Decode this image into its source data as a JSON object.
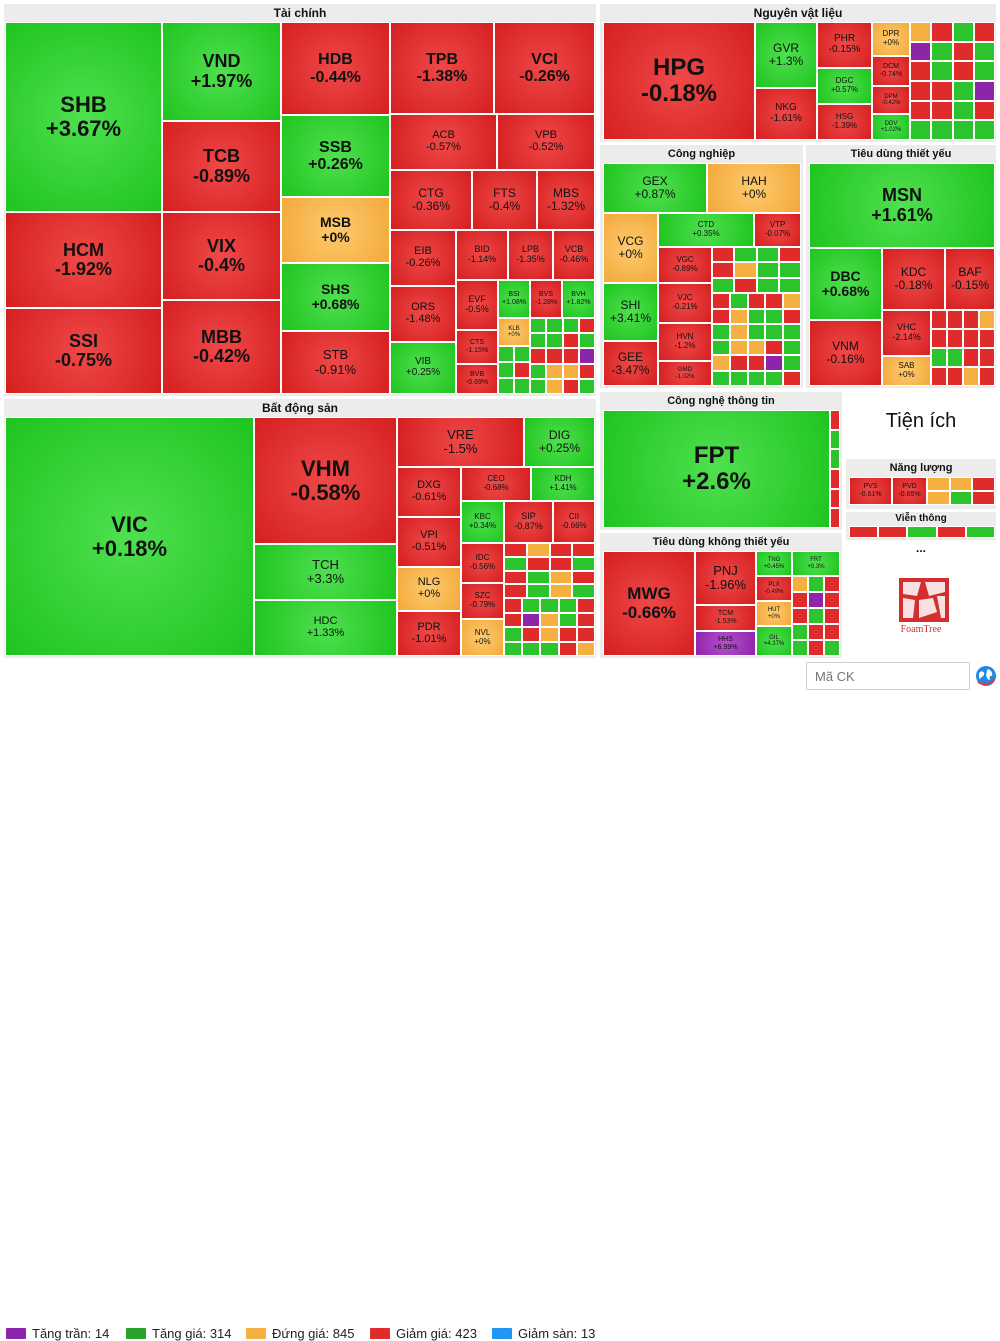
{
  "colors": {
    "ceiling": "#8e24aa",
    "up": "#29a329",
    "flat": "#f5b041",
    "down": "#e02b2b",
    "floor": "#2196f3"
  },
  "legend": [
    {
      "label": "Tăng trần: 14",
      "color": "#8e24aa"
    },
    {
      "label": "Tăng giá: 314",
      "color": "#29a329"
    },
    {
      "label": "Đứng giá: 845",
      "color": "#f5b041"
    },
    {
      "label": "Giảm giá: 423",
      "color": "#e02b2b"
    },
    {
      "label": "Giảm sàn: 13",
      "color": "#2196f3"
    }
  ],
  "search": {
    "placeholder": "Mã CK"
  },
  "util_panel": {
    "title": "Tiện ích",
    "logo_text": "FoamTree",
    "logo_icon": "foamtree-logo-icon",
    "more": "..."
  },
  "chart_data": {
    "type": "treemap",
    "groups": [
      {
        "name": "Tài chính",
        "items": [
          {
            "ticker": "SHB",
            "change": "+3.67%"
          },
          {
            "ticker": "HCM",
            "change": "-1.92%"
          },
          {
            "ticker": "SSI",
            "change": "-0.75%"
          },
          {
            "ticker": "VND",
            "change": "+1.97%"
          },
          {
            "ticker": "TCB",
            "change": "-0.89%"
          },
          {
            "ticker": "VIX",
            "change": "-0.4%"
          },
          {
            "ticker": "MBB",
            "change": "-0.42%"
          },
          {
            "ticker": "HDB",
            "change": "-0.44%"
          },
          {
            "ticker": "SSB",
            "change": "+0.26%"
          },
          {
            "ticker": "MSB",
            "change": "+0%"
          },
          {
            "ticker": "SHS",
            "change": "+0.68%"
          },
          {
            "ticker": "STB",
            "change": "-0.91%"
          },
          {
            "ticker": "TPB",
            "change": "-1.38%"
          },
          {
            "ticker": "VCI",
            "change": "-0.26%"
          },
          {
            "ticker": "ACB",
            "change": "-0.57%"
          },
          {
            "ticker": "VPB",
            "change": "-0.52%"
          },
          {
            "ticker": "CTG",
            "change": "-0.36%"
          },
          {
            "ticker": "FTS",
            "change": "-0.4%"
          },
          {
            "ticker": "MBS",
            "change": "-1.32%"
          },
          {
            "ticker": "EIB",
            "change": "-0.26%"
          },
          {
            "ticker": "BID",
            "change": "-1.14%"
          },
          {
            "ticker": "LPB",
            "change": "-1.35%"
          },
          {
            "ticker": "VCB",
            "change": "-0.46%"
          },
          {
            "ticker": "ORS",
            "change": "-1.48%"
          },
          {
            "ticker": "EVF",
            "change": "-0.5%"
          },
          {
            "ticker": "BSI",
            "change": "+1.08%"
          },
          {
            "ticker": "BVS",
            "change": "-1.28%"
          },
          {
            "ticker": "BVH",
            "change": "+1.82%"
          },
          {
            "ticker": "VIB",
            "change": "+0.25%"
          },
          {
            "ticker": "CTS",
            "change": "-1.15%"
          },
          {
            "ticker": "KLB",
            "change": "+0%"
          },
          {
            "ticker": "BVB",
            "change": "-0.69%"
          }
        ]
      },
      {
        "name": "Bất động sản",
        "items": [
          {
            "ticker": "VIC",
            "change": "+0.18%"
          },
          {
            "ticker": "VHM",
            "change": "-0.58%"
          },
          {
            "ticker": "TCH",
            "change": "+3.3%"
          },
          {
            "ticker": "HDC",
            "change": "+1.33%"
          },
          {
            "ticker": "VRE",
            "change": "-1.5%"
          },
          {
            "ticker": "DIG",
            "change": "+0.25%"
          },
          {
            "ticker": "DXG",
            "change": "-0.61%"
          },
          {
            "ticker": "CEO",
            "change": "-0.68%"
          },
          {
            "ticker": "KDH",
            "change": "+1.41%"
          },
          {
            "ticker": "KBC",
            "change": "+0.34%"
          },
          {
            "ticker": "SIP",
            "change": "-0.87%"
          },
          {
            "ticker": "CII",
            "change": "-0.66%"
          },
          {
            "ticker": "VPI",
            "change": "-0.51%"
          },
          {
            "ticker": "IDC",
            "change": "-0.56%"
          },
          {
            "ticker": "NLG",
            "change": "+0%"
          },
          {
            "ticker": "SZC",
            "change": "-0.79%"
          },
          {
            "ticker": "PDR",
            "change": "-1.01%"
          },
          {
            "ticker": "NVL",
            "change": "+0%"
          }
        ]
      },
      {
        "name": "Nguyên vật liệu",
        "items": [
          {
            "ticker": "HPG",
            "change": "-0.18%"
          },
          {
            "ticker": "GVR",
            "change": "+1.3%"
          },
          {
            "ticker": "NKG",
            "change": "-1.61%"
          },
          {
            "ticker": "PHR",
            "change": "-0.15%"
          },
          {
            "ticker": "DGC",
            "change": "+0.57%"
          },
          {
            "ticker": "HSG",
            "change": "-1.39%"
          },
          {
            "ticker": "DPR",
            "change": "+0%"
          },
          {
            "ticker": "DCM",
            "change": "-0.74%"
          },
          {
            "ticker": "DPM",
            "change": "-0.42%"
          },
          {
            "ticker": "DDV",
            "change": "+1.02%"
          }
        ]
      },
      {
        "name": "Công nghiệp",
        "items": [
          {
            "ticker": "GEX",
            "change": "+0.87%"
          },
          {
            "ticker": "HAH",
            "change": "+0%"
          },
          {
            "ticker": "VCG",
            "change": "+0%"
          },
          {
            "ticker": "CTD",
            "change": "+0.35%"
          },
          {
            "ticker": "VTP",
            "change": "-0.07%"
          },
          {
            "ticker": "SHI",
            "change": "+3.41%"
          },
          {
            "ticker": "VGC",
            "change": "-0.89%"
          },
          {
            "ticker": "VJC",
            "change": "-0.21%"
          },
          {
            "ticker": "HVN",
            "change": "-1.2%"
          },
          {
            "ticker": "GEE",
            "change": "-3.47%"
          },
          {
            "ticker": "GMD",
            "change": "-1.02%"
          }
        ]
      },
      {
        "name": "Tiêu dùng thiết yếu",
        "items": [
          {
            "ticker": "MSN",
            "change": "+1.61%"
          },
          {
            "ticker": "DBC",
            "change": "+0.68%"
          },
          {
            "ticker": "KDC",
            "change": "-0.18%"
          },
          {
            "ticker": "BAF",
            "change": "-0.15%"
          },
          {
            "ticker": "VNM",
            "change": "-0.16%"
          },
          {
            "ticker": "VHC",
            "change": "-2.14%"
          },
          {
            "ticker": "SAB",
            "change": "+0%"
          }
        ]
      },
      {
        "name": "Công nghệ thông tin",
        "items": [
          {
            "ticker": "FPT",
            "change": "+2.6%"
          }
        ]
      },
      {
        "name": "Tiêu dùng không thiết yếu",
        "items": [
          {
            "ticker": "MWG",
            "change": "-0.66%"
          },
          {
            "ticker": "PNJ",
            "change": "-1.96%"
          },
          {
            "ticker": "TNG",
            "change": "+0.45%"
          },
          {
            "ticker": "FRT",
            "change": "+0.3%"
          },
          {
            "ticker": "PLX",
            "change": "-0.49%"
          },
          {
            "ticker": "HUT",
            "change": "+0%"
          },
          {
            "ticker": "TCM",
            "change": "-1.53%"
          },
          {
            "ticker": "HHS",
            "change": "+6.99%"
          },
          {
            "ticker": "GIL",
            "change": "+4.37%"
          }
        ]
      },
      {
        "name": "Năng lượng",
        "items": [
          {
            "ticker": "PVS",
            "change": "-0.61%"
          },
          {
            "ticker": "PVD",
            "change": "-0.65%"
          }
        ]
      },
      {
        "name": "Viễn thông",
        "items": []
      }
    ]
  }
}
